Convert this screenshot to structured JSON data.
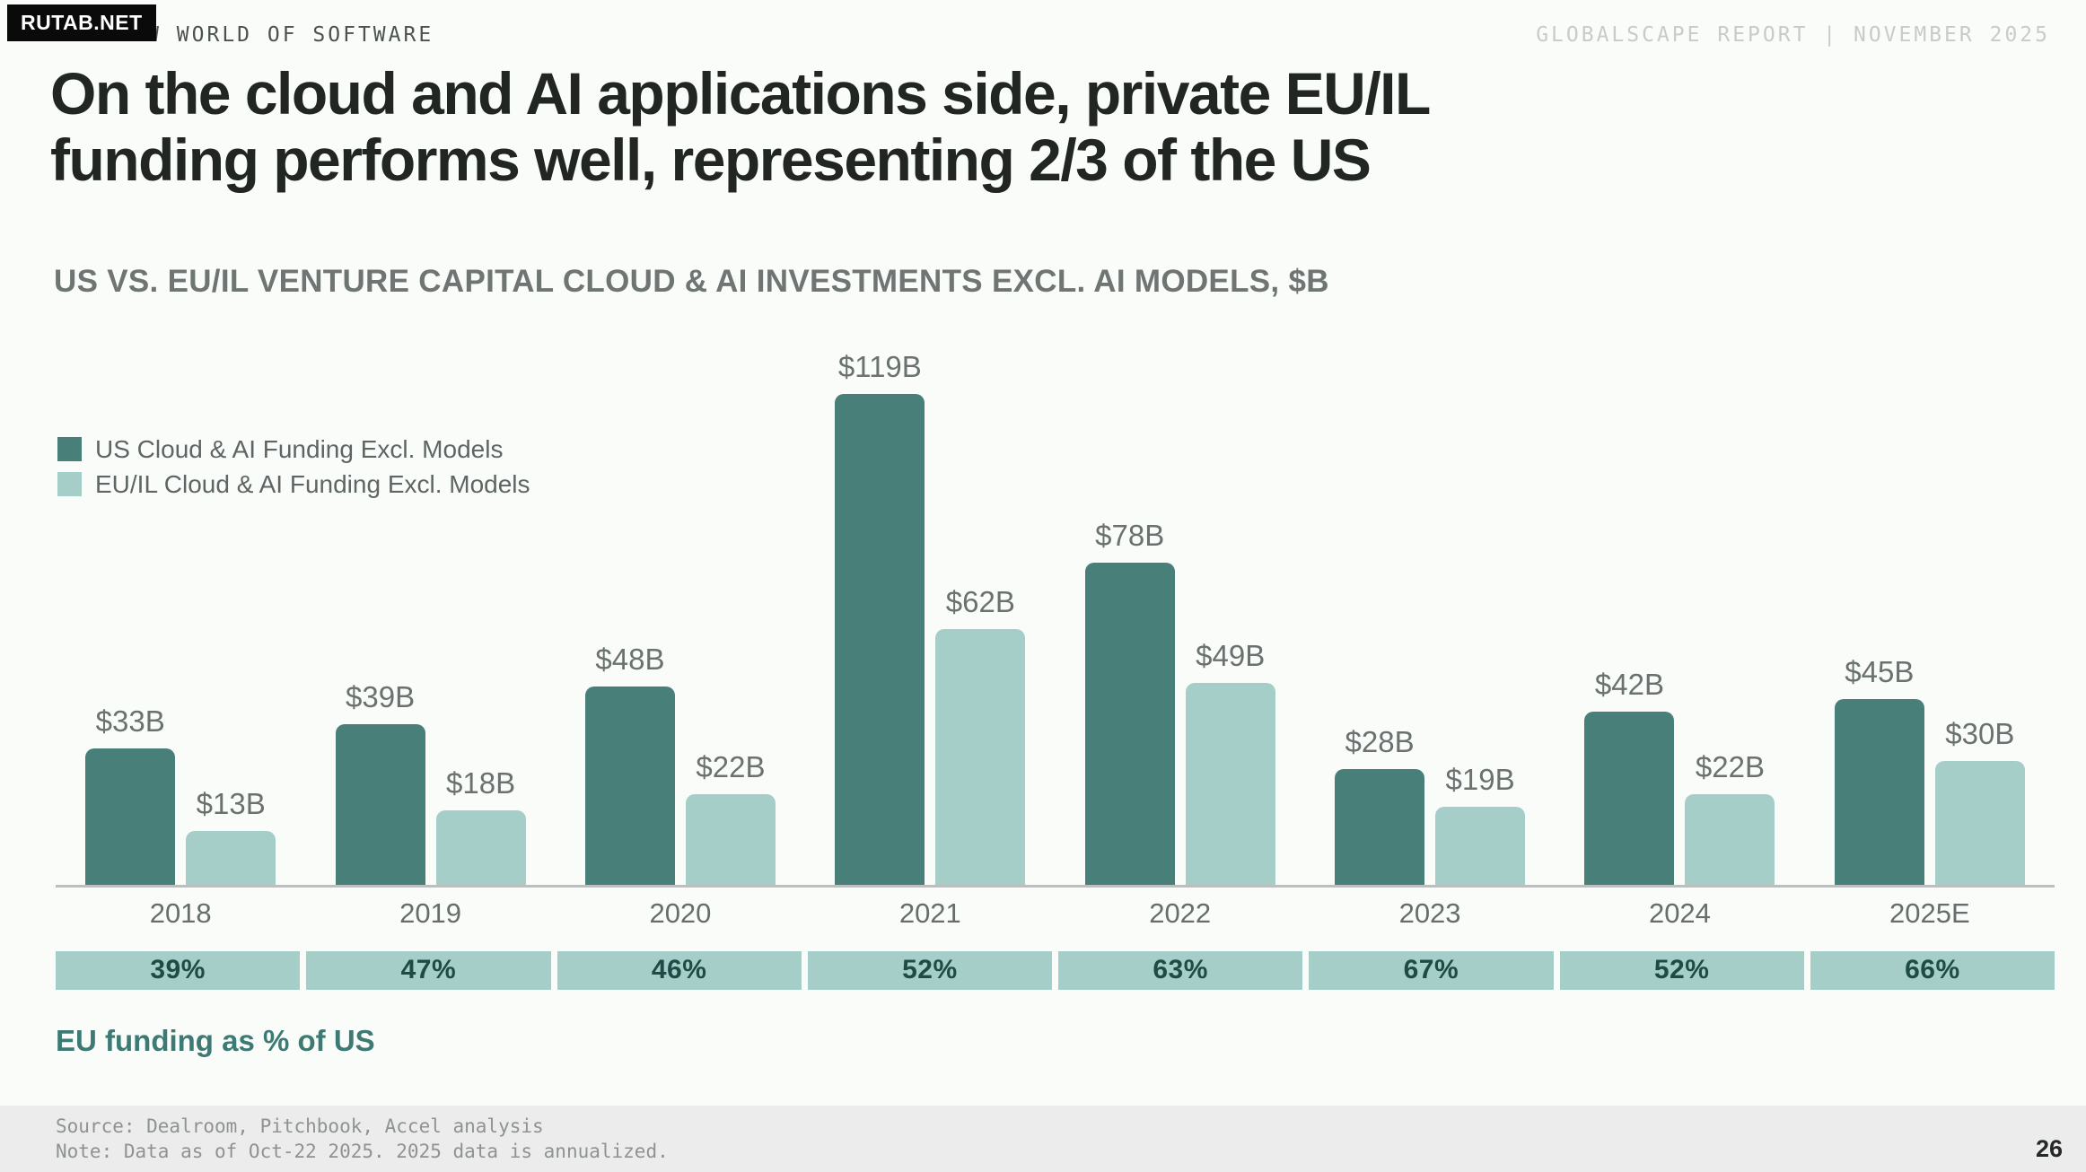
{
  "badge": {
    "text": "RUTAB.NET"
  },
  "header": {
    "eyebrow": "THE NEW WORLD OF SOFTWARE",
    "report_label": "GLOBALSCAPE REPORT | NOVEMBER 2025",
    "title_line1": "On the cloud and AI applications side, private EU/IL",
    "title_line2": "funding performs well, representing 2/3 of the US"
  },
  "chart": {
    "subtitle": "US VS. EU/IL VENTURE CAPITAL CLOUD & AI INVESTMENTS EXCL. AI MODELS, $B",
    "legend": [
      {
        "label": "US Cloud & AI Funding Excl. Models"
      },
      {
        "label": "EU/IL Cloud & AI Funding Excl. Models"
      }
    ],
    "pct_caption": "EU funding as % of US"
  },
  "chart_data": {
    "type": "bar",
    "title": "US VS. EU/IL VENTURE CAPITAL CLOUD & AI INVESTMENTS EXCL. AI MODELS, $B",
    "categories": [
      "2018",
      "2019",
      "2020",
      "2021",
      "2022",
      "2023",
      "2024",
      "2025E"
    ],
    "series": [
      {
        "name": "US Cloud & AI Funding Excl. Models",
        "color": "#487f78",
        "values": [
          33,
          39,
          48,
          119,
          78,
          28,
          42,
          45
        ],
        "labels": [
          "$33B",
          "$39B",
          "$48B",
          "$119B",
          "$78B",
          "$28B",
          "$42B",
          "$45B"
        ]
      },
      {
        "name": "EU/IL Cloud & AI Funding Excl. Models",
        "color": "#a5cec8",
        "values": [
          13,
          18,
          22,
          62,
          49,
          19,
          22,
          30
        ],
        "labels": [
          "$13B",
          "$18B",
          "$22B",
          "$62B",
          "$49B",
          "$19B",
          "$22B",
          "$30B"
        ]
      }
    ],
    "pct_values": [
      "39%",
      "47%",
      "46%",
      "52%",
      "63%",
      "67%",
      "52%",
      "66%"
    ],
    "pct_caption": "EU funding as % of US",
    "ylim": [
      0,
      125
    ],
    "grid": false,
    "legend_position": "top-left",
    "value_labels": true
  },
  "footer": {
    "source": "Source: Dealroom, Pitchbook, Accel analysis",
    "note": "Note: Data as of Oct-22 2025. 2025 data is annualized.",
    "page": "26"
  }
}
